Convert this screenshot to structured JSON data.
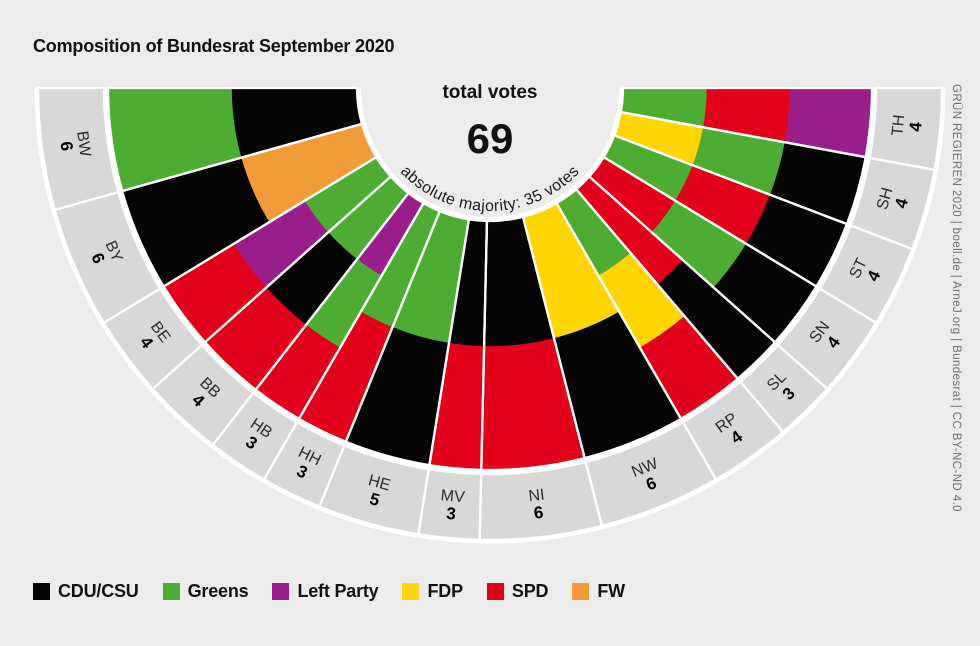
{
  "title": "Composition of Bundesrat September 2020",
  "center": {
    "label": "total votes",
    "value": "69",
    "note": "absolute majority: 35 votes"
  },
  "attribution": "GRÜN REGIEREN 2020 | boell.de | ArneJ.org | Bundesrat | CC BY-NC-ND 4.0",
  "legend": [
    {
      "label": "CDU/CSU",
      "color": "#050505"
    },
    {
      "label": "Greens",
      "color": "#4cad32"
    },
    {
      "label": "Left Party",
      "color": "#9c1e8c"
    },
    {
      "label": "FDP",
      "color": "#ffd502"
    },
    {
      "label": "SPD",
      "color": "#e2001a"
    },
    {
      "label": "FW",
      "color": "#f29b38"
    }
  ],
  "chart_data": {
    "type": "pie",
    "variant": "half-donut",
    "title": "Composition of Bundesrat September 2020",
    "total_votes": 69,
    "absolute_majority": 35,
    "band_color": "#d8d8d8",
    "party_colors": {
      "CDU/CSU": "#050505",
      "Greens": "#4cad32",
      "Left Party": "#9c1e8c",
      "FDP": "#ffd502",
      "SPD": "#e2001a",
      "FW": "#f29b38"
    },
    "states": [
      {
        "code": "BW",
        "votes": 6,
        "coalition": [
          "Greens",
          "CDU/CSU"
        ]
      },
      {
        "code": "BY",
        "votes": 6,
        "coalition": [
          "CDU/CSU",
          "FW"
        ]
      },
      {
        "code": "BE",
        "votes": 4,
        "coalition": [
          "SPD",
          "Left Party",
          "Greens"
        ]
      },
      {
        "code": "BB",
        "votes": 4,
        "coalition": [
          "SPD",
          "CDU/CSU",
          "Greens"
        ]
      },
      {
        "code": "HB",
        "votes": 3,
        "coalition": [
          "SPD",
          "Greens",
          "Left Party"
        ]
      },
      {
        "code": "HH",
        "votes": 3,
        "coalition": [
          "SPD",
          "Greens"
        ]
      },
      {
        "code": "HE",
        "votes": 5,
        "coalition": [
          "CDU/CSU",
          "Greens"
        ]
      },
      {
        "code": "MV",
        "votes": 3,
        "coalition": [
          "SPD",
          "CDU/CSU"
        ]
      },
      {
        "code": "NI",
        "votes": 6,
        "coalition": [
          "SPD",
          "CDU/CSU"
        ]
      },
      {
        "code": "NW",
        "votes": 6,
        "coalition": [
          "CDU/CSU",
          "FDP"
        ]
      },
      {
        "code": "RP",
        "votes": 4,
        "coalition": [
          "SPD",
          "FDP",
          "Greens"
        ]
      },
      {
        "code": "SL",
        "votes": 3,
        "coalition": [
          "CDU/CSU",
          "SPD"
        ]
      },
      {
        "code": "SN",
        "votes": 4,
        "coalition": [
          "CDU/CSU",
          "Greens",
          "SPD"
        ]
      },
      {
        "code": "ST",
        "votes": 4,
        "coalition": [
          "CDU/CSU",
          "SPD",
          "Greens"
        ]
      },
      {
        "code": "SH",
        "votes": 4,
        "coalition": [
          "CDU/CSU",
          "Greens",
          "FDP"
        ]
      },
      {
        "code": "TH",
        "votes": 4,
        "coalition": [
          "Left Party",
          "SPD",
          "Greens"
        ]
      }
    ]
  }
}
